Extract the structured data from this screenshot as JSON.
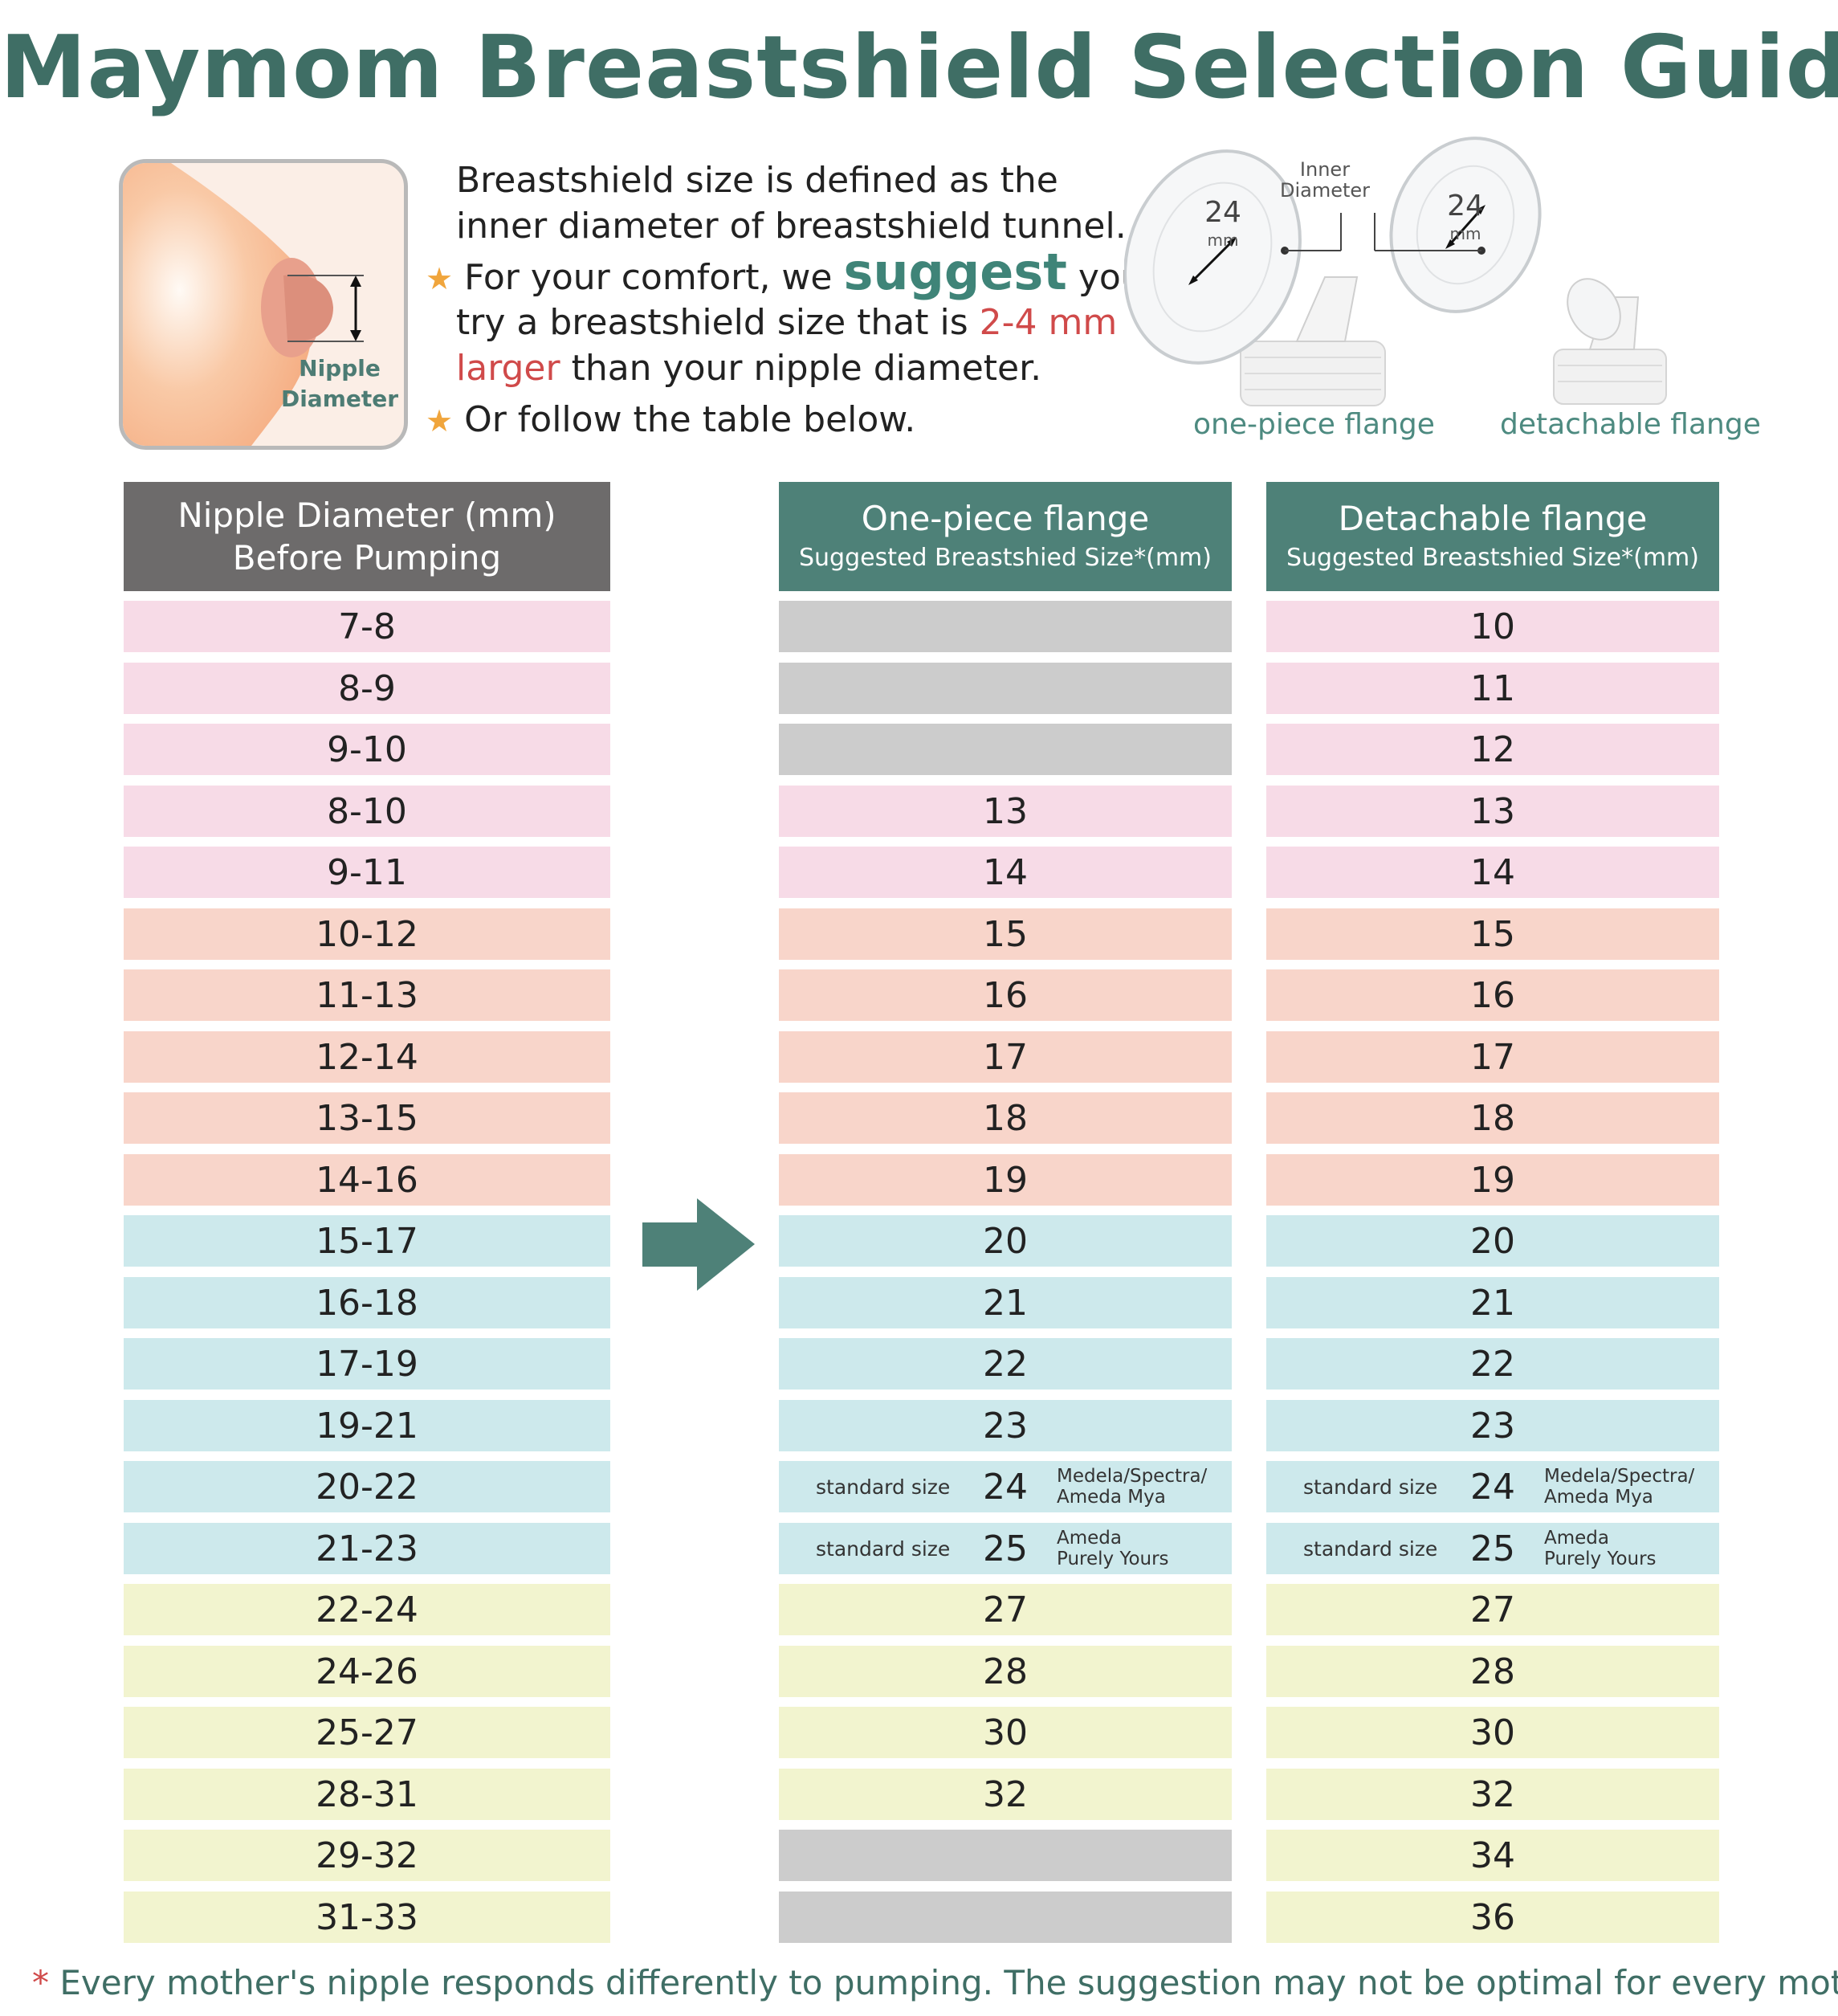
{
  "title": "Maymom Breastshield Selection Guide",
  "nipple_illustration": {
    "label_line1": "Nipple",
    "label_line2": "Diameter"
  },
  "intro": {
    "line1": "Breastshield size is defined as the",
    "line2": "inner diameter of breastshield tunnel.",
    "line3_pre": "For your comfort, we ",
    "line3_emph": "suggest",
    "line3_post": " you",
    "line4_pre": "try a breastshield size that is ",
    "line4_red": "2-4 mm",
    "line5_red": "larger",
    "line5_post": " than your nipple diameter.",
    "line6": "Or follow the table below."
  },
  "flanges": {
    "inner_label_1": "Inner",
    "inner_label_2": "Diameter",
    "size_value": "24",
    "size_unit": "mm",
    "one_piece_caption": "one-piece flange",
    "detachable_caption": "detachable flange"
  },
  "table": {
    "header_nipple_line1": "Nipple Diameter (mm)",
    "header_nipple_line2": "Before Pumping",
    "header_onepiece": "One-piece flange",
    "header_onepiece_sub": "Suggested Breastshied Size*(mm)",
    "header_detachable": "Detachable flange",
    "header_detachable_sub": "Suggested Breastshied Size*(mm)",
    "rows": [
      {
        "nipple": "7-8",
        "one": "",
        "det": "10",
        "color": "pink"
      },
      {
        "nipple": "8-9",
        "one": "",
        "det": "11",
        "color": "pink"
      },
      {
        "nipple": "9-10",
        "one": "",
        "det": "12",
        "color": "pink"
      },
      {
        "nipple": "8-10",
        "one": "13",
        "det": "13",
        "color": "pink"
      },
      {
        "nipple": "9-11",
        "one": "14",
        "det": "14",
        "color": "pink"
      },
      {
        "nipple": "10-12",
        "one": "15",
        "det": "15",
        "color": "salmon"
      },
      {
        "nipple": "11-13",
        "one": "16",
        "det": "16",
        "color": "salmon"
      },
      {
        "nipple": "12-14",
        "one": "17",
        "det": "17",
        "color": "salmon"
      },
      {
        "nipple": "13-15",
        "one": "18",
        "det": "18",
        "color": "salmon"
      },
      {
        "nipple": "14-16",
        "one": "19",
        "det": "19",
        "color": "salmon"
      },
      {
        "nipple": "15-17",
        "one": "20",
        "det": "20",
        "color": "blue"
      },
      {
        "nipple": "16-18",
        "one": "21",
        "det": "21",
        "color": "blue"
      },
      {
        "nipple": "17-19",
        "one": "22",
        "det": "22",
        "color": "blue"
      },
      {
        "nipple": "19-21",
        "one": "23",
        "det": "23",
        "color": "blue"
      },
      {
        "nipple": "20-22",
        "one": "24",
        "det": "24",
        "color": "blue",
        "std": "standard size",
        "brand1": "Medela/Spectra/",
        "brand2": "Ameda Mya"
      },
      {
        "nipple": "21-23",
        "one": "25",
        "det": "25",
        "color": "blue",
        "std": "standard size",
        "brand1": "Ameda",
        "brand2": "Purely Yours"
      },
      {
        "nipple": "22-24",
        "one": "27",
        "det": "27",
        "color": "yellow"
      },
      {
        "nipple": "24-26",
        "one": "28",
        "det": "28",
        "color": "yellow"
      },
      {
        "nipple": "25-27",
        "one": "30",
        "det": "30",
        "color": "yellow"
      },
      {
        "nipple": "28-31",
        "one": "32",
        "det": "32",
        "color": "yellow"
      },
      {
        "nipple": "29-32",
        "one": "",
        "det": "34",
        "color": "yellow"
      },
      {
        "nipple": "31-33",
        "one": "",
        "det": "36",
        "color": "yellow"
      }
    ]
  },
  "footnote": {
    "asterisk": "*",
    "text": "Every mother's nipple responds differently to pumping. The suggestion may not be optimal for every mother."
  }
}
